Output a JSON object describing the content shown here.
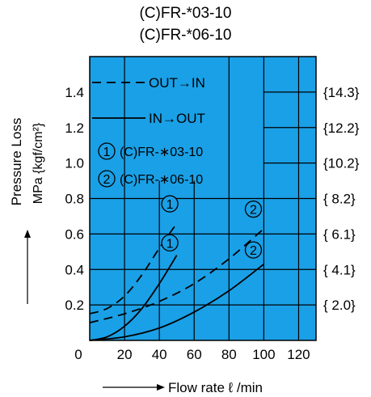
{
  "header": {
    "title_line1": "(C)FR-*03-10",
    "title_line2": "(C)FR-*06-10"
  },
  "chart_data": {
    "type": "line",
    "title": "(C)FR-*03-10 / (C)FR-*06-10",
    "xlabel": "Flow rate ℓ /min",
    "ylabel_lines": [
      "Pressure Loss",
      "MPa {kgf/cm²}"
    ],
    "xlim": [
      0,
      130
    ],
    "ylim": [
      0,
      1.6
    ],
    "x_ticks": [
      0,
      20,
      40,
      60,
      80,
      100,
      120
    ],
    "y_ticks": [
      0.2,
      0.4,
      0.6,
      0.8,
      1.0,
      1.2,
      1.4
    ],
    "y_ticks_right": [
      "{ 2.0}",
      "{ 4.1}",
      "{ 6.1}",
      "{ 8.2}",
      "{10.2}",
      "{12.2}",
      "{14.3}"
    ],
    "grid": true,
    "background_color": "#1aa0e6",
    "line_color": "#000000",
    "legend": {
      "placement": "top-left",
      "entries": [
        {
          "label": "OUT→IN",
          "style": "dashed"
        },
        {
          "label": "IN→OUT",
          "style": "solid"
        },
        {
          "marker": "1",
          "label": "(C)FR-∗03-10"
        },
        {
          "marker": "2",
          "label": "(C)FR-∗06-10"
        }
      ]
    },
    "series": [
      {
        "marker": "1",
        "direction": "OUT→IN",
        "style": "dashed",
        "x": [
          0,
          10,
          20,
          30,
          40,
          50
        ],
        "y": [
          0.15,
          0.18,
          0.25,
          0.37,
          0.52,
          0.66
        ]
      },
      {
        "marker": "1",
        "direction": "IN→OUT",
        "style": "solid",
        "x": [
          0,
          10,
          20,
          30,
          40,
          50
        ],
        "y": [
          0.0,
          0.02,
          0.08,
          0.18,
          0.32,
          0.48
        ]
      },
      {
        "marker": "2",
        "direction": "OUT→IN",
        "style": "dashed",
        "x": [
          0,
          20,
          40,
          60,
          80,
          100
        ],
        "y": [
          0.1,
          0.15,
          0.22,
          0.32,
          0.46,
          0.63
        ]
      },
      {
        "marker": "2",
        "direction": "IN→OUT",
        "style": "solid",
        "x": [
          0,
          20,
          40,
          60,
          80,
          100
        ],
        "y": [
          0.0,
          0.02,
          0.07,
          0.16,
          0.28,
          0.43
        ]
      }
    ]
  }
}
